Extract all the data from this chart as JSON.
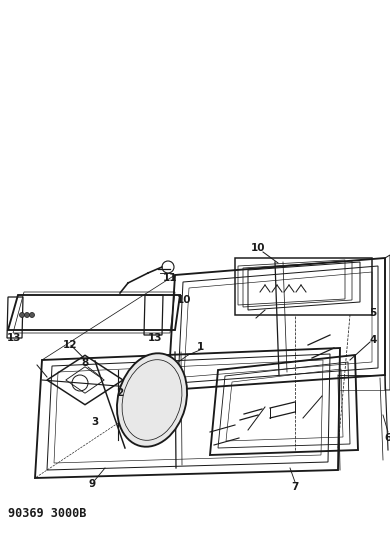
{
  "title_code": "90369 3000B",
  "bg_color": "#ffffff",
  "line_color": "#1a1a1a",
  "fig_width": 3.9,
  "fig_height": 5.33,
  "header_fontsize": 8.5,
  "label_fontsize": 7.5
}
